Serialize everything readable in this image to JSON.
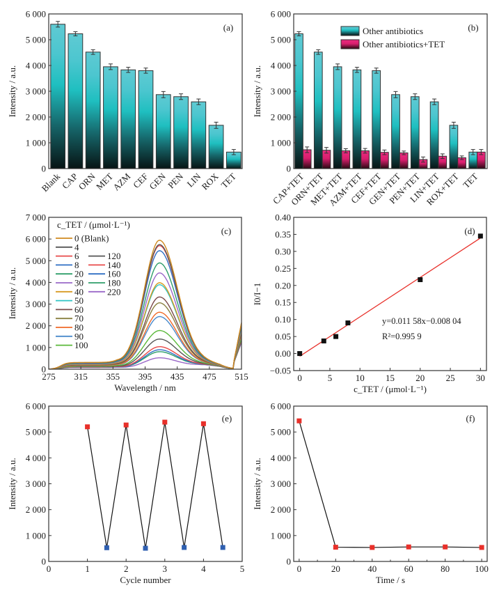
{
  "figure": {
    "panels": [
      "(a)",
      "(b)",
      "(c)",
      "(d)",
      "(e)",
      "(f)"
    ]
  },
  "chart_data": [
    {
      "id": "a",
      "type": "bar",
      "panel_label": "(a)",
      "title": "",
      "xlabel": "",
      "ylabel": "Intensity / a.u.",
      "ylim": [
        0,
        6000
      ],
      "yticks": [
        0,
        1000,
        2000,
        3000,
        4000,
        5000,
        6000
      ],
      "ytick_labels": [
        "0",
        "1 000",
        "2 000",
        "3 000",
        "4 000",
        "5 000",
        "6 000"
      ],
      "categories": [
        "Blank",
        "CAP",
        "ORN",
        "MET",
        "AZM",
        "CEF",
        "GEN",
        "PEN",
        "LIN",
        "ROX",
        "TET"
      ],
      "values": [
        5600,
        5230,
        4520,
        3950,
        3830,
        3800,
        2870,
        2790,
        2590,
        1680,
        640
      ],
      "errors": [
        110,
        80,
        90,
        110,
        100,
        100,
        120,
        110,
        110,
        120,
        100
      ],
      "colors": {
        "bar_top": "#5cc9d2",
        "bar_mid": "#22bfc2",
        "bar_bottom": "#0a1a1a"
      }
    },
    {
      "id": "b",
      "type": "bar",
      "panel_label": "(b)",
      "title": "",
      "xlabel": "",
      "ylabel": "Intensity / a.u.",
      "ylim": [
        0,
        6000
      ],
      "yticks": [
        0,
        1000,
        2000,
        3000,
        4000,
        5000,
        6000
      ],
      "ytick_labels": [
        "0",
        "1 000",
        "2 000",
        "3 000",
        "4 000",
        "5 000",
        "6 000"
      ],
      "categories": [
        "CAP+TET",
        "ORN+TET",
        "MET+TET",
        "AZM+TET",
        "CEF+TET",
        "GEN+TET",
        "PEN+TET",
        "LIN+TET",
        "ROX+TET",
        "TET"
      ],
      "legend_position": "top-center",
      "series": [
        {
          "name": "Other antibiotics",
          "values": [
            5230,
            4520,
            3950,
            3830,
            3800,
            2870,
            2790,
            2590,
            1680,
            640
          ],
          "errors": [
            80,
            90,
            110,
            100,
            100,
            120,
            110,
            110,
            120,
            100
          ],
          "color_top": "#5cc9d2",
          "color_mid": "#22bfc2",
          "color_bottom": "#0a1a1a"
        },
        {
          "name": "Other antibiotics+TET",
          "values": [
            730,
            710,
            690,
            690,
            630,
            610,
            350,
            480,
            420,
            640
          ],
          "errors": [
            110,
            110,
            80,
            90,
            90,
            70,
            100,
            90,
            70,
            100
          ],
          "color_top": "#e8247a",
          "color_mid": "#d81f6e",
          "color_bottom": "#2a0a14"
        }
      ]
    },
    {
      "id": "c",
      "type": "line",
      "panel_label": "(c)",
      "title": "",
      "xlabel": "Wavelength / nm",
      "ylabel": "Intensity / a.u.",
      "xlim": [
        275,
        515
      ],
      "ylim": [
        0,
        7000
      ],
      "xticks": [
        275,
        315,
        355,
        395,
        435,
        475,
        515
      ],
      "yticks": [
        0,
        1000,
        2000,
        3000,
        4000,
        5000,
        6000,
        7000
      ],
      "ytick_labels": [
        "0",
        "1 000",
        "2 000",
        "3 000",
        "4 000",
        "5 000",
        "6 000",
        "7 000"
      ],
      "legend_title": "c_TET / (μmol·L⁻¹)",
      "legend_position": "top-left",
      "peak_wavelength": 413,
      "series": [
        {
          "name": "0 (Blank)",
          "peak": 5900,
          "color": "#d08a1e"
        },
        {
          "name": "4",
          "peak": 5700,
          "color": "#555555"
        },
        {
          "name": "6",
          "peak": 5650,
          "color": "#e84a4a"
        },
        {
          "name": "8",
          "peak": 5420,
          "color": "#2f6fc4"
        },
        {
          "name": "20",
          "peak": 4860,
          "color": "#2e9e6a"
        },
        {
          "name": "30",
          "peak": 4400,
          "color": "#9a68c8"
        },
        {
          "name": "40",
          "peak": 3950,
          "color": "#d89a22"
        },
        {
          "name": "50",
          "peak": 3860,
          "color": "#2ec4c4"
        },
        {
          "name": "60",
          "peak": 3300,
          "color": "#7a4a4a"
        },
        {
          "name": "70",
          "peak": 3030,
          "color": "#8a8040"
        },
        {
          "name": "80",
          "peak": 2600,
          "color": "#f06a28"
        },
        {
          "name": "90",
          "peak": 2400,
          "color": "#4a8acb"
        },
        {
          "name": "100",
          "peak": 1760,
          "color": "#5ab83a"
        },
        {
          "name": "120",
          "peak": 1370,
          "color": "#555555"
        },
        {
          "name": "140",
          "peak": 1020,
          "color": "#e84a4a"
        },
        {
          "name": "160",
          "peak": 880,
          "color": "#2f6fc4"
        },
        {
          "name": "180",
          "peak": 790,
          "color": "#2e9e6a"
        },
        {
          "name": "220",
          "peak": 510,
          "color": "#9a68c8"
        }
      ]
    },
    {
      "id": "d",
      "type": "scatter",
      "panel_label": "(d)",
      "title": "",
      "xlabel": "c_TET / (μmol·L⁻¹)",
      "ylabel": "I0/I−1",
      "xlim": [
        -1,
        31
      ],
      "ylim": [
        -0.05,
        0.4
      ],
      "xticks": [
        0,
        5,
        10,
        15,
        20,
        25,
        30
      ],
      "yticks": [
        -0.05,
        0.0,
        0.05,
        0.1,
        0.15,
        0.2,
        0.25,
        0.3,
        0.35,
        0.4
      ],
      "ytick_labels": [
        "−0.05",
        "0.00",
        "0.05",
        "0.10",
        "0.15",
        "0.20",
        "0.25",
        "0.30",
        "0.35",
        "0.40"
      ],
      "x": [
        0,
        4,
        6,
        8,
        20,
        30
      ],
      "y": [
        0.0,
        0.037,
        0.05,
        0.09,
        0.217,
        0.345
      ],
      "fit": {
        "slope": 0.01158,
        "intercept": -0.00804,
        "color": "#e8302a"
      },
      "equation": "y=0.011 58x−0.008 04",
      "r2": "R²=0.995 9",
      "marker_color": "#111111"
    },
    {
      "id": "e",
      "type": "line",
      "panel_label": "(e)",
      "title": "",
      "xlabel": "Cycle number",
      "ylabel": "Intensity / a.u.",
      "xlim": [
        0,
        5
      ],
      "ylim": [
        0,
        6000
      ],
      "xticks": [
        0,
        1,
        2,
        3,
        4,
        5
      ],
      "yticks": [
        0,
        1000,
        2000,
        3000,
        4000,
        5000,
        6000
      ],
      "ytick_labels": [
        "0",
        "1 000",
        "2 000",
        "3 000",
        "4 000",
        "5 000",
        "6 000"
      ],
      "x": [
        1,
        1.5,
        2,
        2.5,
        3,
        3.5,
        4,
        4.5
      ],
      "y": [
        5200,
        530,
        5270,
        510,
        5380,
        540,
        5320,
        540
      ],
      "marker_colors": [
        "#e8302a",
        "#2f5fb0",
        "#e8302a",
        "#2f5fb0",
        "#e8302a",
        "#2f5fb0",
        "#e8302a",
        "#2f5fb0"
      ],
      "line_color": "#111111"
    },
    {
      "id": "f",
      "type": "line",
      "panel_label": "(f)",
      "title": "",
      "xlabel": "Time / s",
      "ylabel": "Intensity / a.u.",
      "xlim": [
        -3,
        103
      ],
      "ylim": [
        0,
        6000
      ],
      "xticks": [
        0,
        20,
        40,
        60,
        80,
        100
      ],
      "yticks": [
        0,
        1000,
        2000,
        3000,
        4000,
        5000,
        6000
      ],
      "ytick_labels": [
        "0",
        "1 000",
        "2 000",
        "3 000",
        "4 000",
        "5 000",
        "6 000"
      ],
      "x": [
        0,
        20,
        40,
        60,
        80,
        100
      ],
      "y": [
        5430,
        550,
        540,
        560,
        560,
        540
      ],
      "marker_color": "#e8302a",
      "line_color": "#111111"
    }
  ]
}
